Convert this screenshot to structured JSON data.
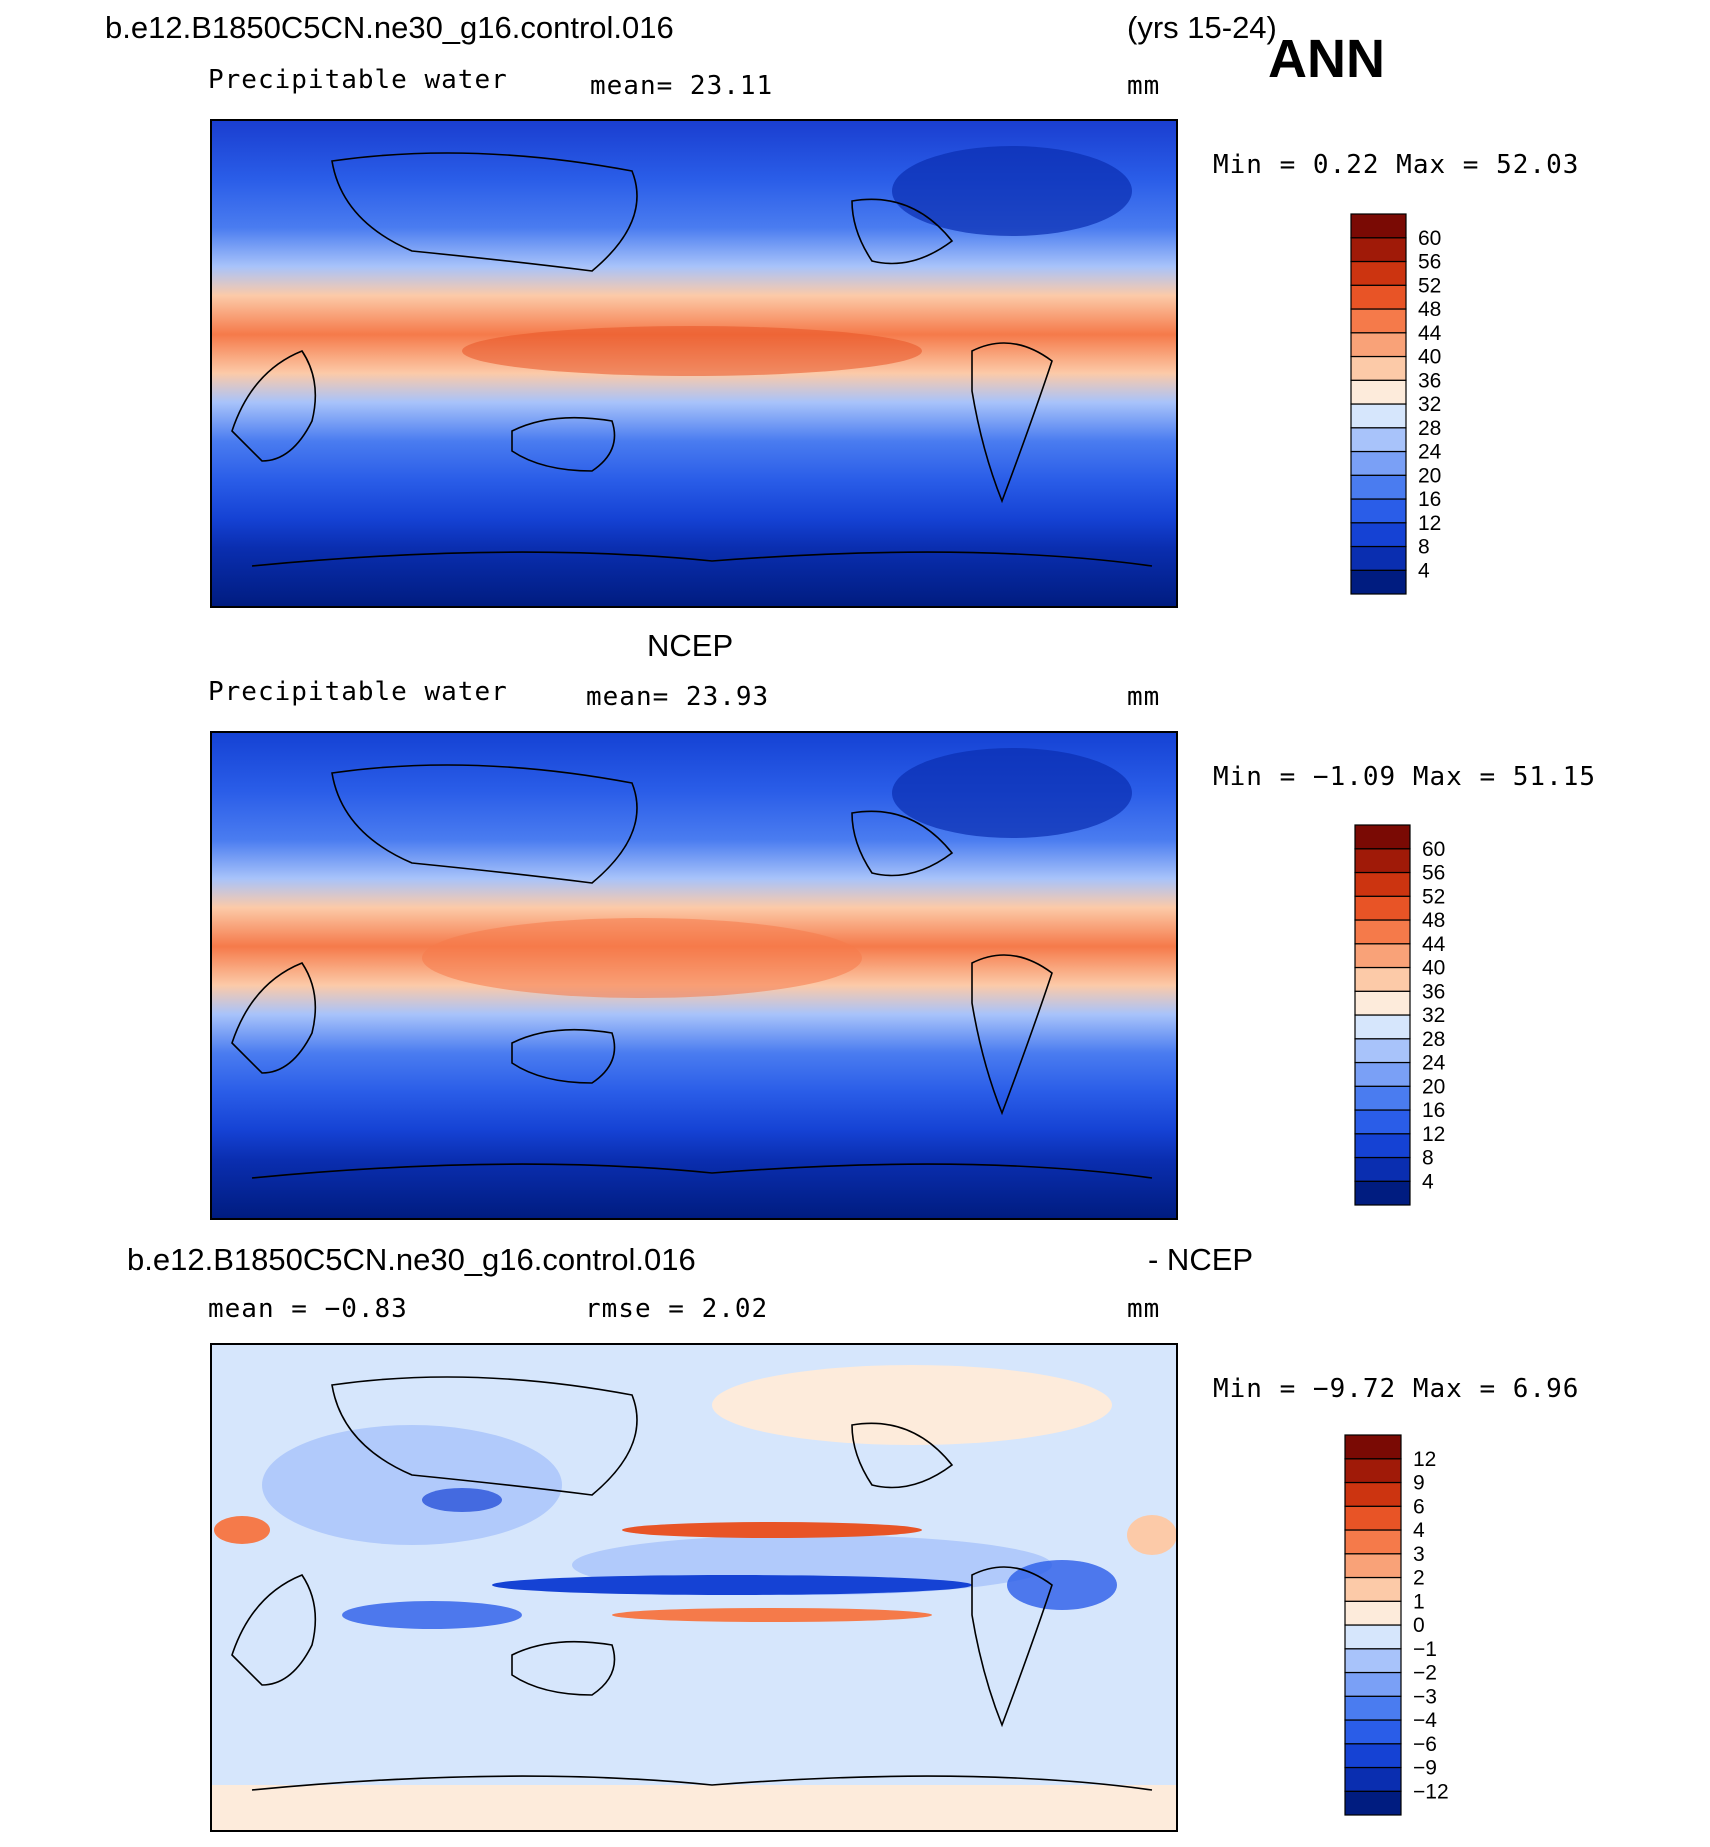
{
  "header": {
    "case": "b.e12.B1850C5CN.ne30_g16.control.016",
    "years": "(yrs 15-24)",
    "season": "ANN"
  },
  "panels": [
    {
      "title": "",
      "variable": "Precipitable water",
      "stat": "mean=   23.11",
      "units": "mm",
      "minmax": "Min =    0.22  Max =   52.03",
      "colorbar": {
        "labels": [
          "4",
          "8",
          "12",
          "16",
          "20",
          "24",
          "28",
          "32",
          "36",
          "40",
          "44",
          "48",
          "52",
          "56",
          "60"
        ],
        "colors": [
          "#001c80",
          "#0a2eb0",
          "#1542d4",
          "#2a5de8",
          "#4a7cf0",
          "#7aa0f6",
          "#a8c3fa",
          "#d6e6fc",
          "#fdebdb",
          "#fccaa8",
          "#f9a278",
          "#f57a4a",
          "#e85426",
          "#cc3410",
          "#a01a08",
          "#7a0a04"
        ]
      }
    },
    {
      "title": "NCEP",
      "variable": "Precipitable water",
      "stat": "mean=   23.93",
      "units": "mm",
      "minmax": "Min =   −1.09  Max =   51.15",
      "colorbar": {
        "labels": [
          "4",
          "8",
          "12",
          "16",
          "20",
          "24",
          "28",
          "32",
          "36",
          "40",
          "44",
          "48",
          "52",
          "56",
          "60"
        ],
        "colors": [
          "#001c80",
          "#0a2eb0",
          "#1542d4",
          "#2a5de8",
          "#4a7cf0",
          "#7aa0f6",
          "#a8c3fa",
          "#d6e6fc",
          "#fdebdb",
          "#fccaa8",
          "#f9a278",
          "#f57a4a",
          "#e85426",
          "#cc3410",
          "#a01a08",
          "#7a0a04"
        ]
      }
    },
    {
      "title_left": "b.e12.B1850C5CN.ne30_g16.control.016",
      "title_right": "- NCEP",
      "stat": "mean =   −0.83",
      "stat2": "rmse =    2.02",
      "units": "mm",
      "minmax": "Min =   −9.72  Max =    6.96",
      "colorbar": {
        "labels": [
          "−12",
          "−9",
          "−6",
          "−4",
          "−3",
          "−2",
          "−1",
          "0",
          "1",
          "2",
          "3",
          "4",
          "6",
          "9",
          "12"
        ],
        "colors": [
          "#001c80",
          "#0a2eb0",
          "#1542d4",
          "#2a5de8",
          "#4a7cf0",
          "#7aa0f6",
          "#a8c3fa",
          "#d6e6fc",
          "#fdebdb",
          "#fccaa8",
          "#f9a278",
          "#f57a4a",
          "#e85426",
          "#cc3410",
          "#a01a08",
          "#7a0a04"
        ]
      }
    }
  ]
}
